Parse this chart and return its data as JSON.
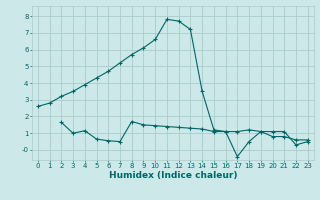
{
  "title": "",
  "xlabel": "Humidex (Indice chaleur)",
  "bg_color": "#cce8e8",
  "grid_color": "#aacccc",
  "line_color": "#006666",
  "xlim": [
    -0.5,
    23.5
  ],
  "ylim": [
    -0.6,
    8.6
  ],
  "xticks": [
    0,
    1,
    2,
    3,
    4,
    5,
    6,
    7,
    8,
    9,
    10,
    11,
    12,
    13,
    14,
    15,
    16,
    17,
    18,
    19,
    20,
    21,
    22,
    23
  ],
  "yticks": [
    0,
    1,
    2,
    3,
    4,
    5,
    6,
    7,
    8
  ],
  "ytick_labels": [
    "-0",
    "1",
    "2",
    "3",
    "4",
    "5",
    "6",
    "7",
    "8"
  ],
  "line1_x": [
    0,
    1,
    2,
    3,
    4,
    5,
    6,
    7,
    8,
    9,
    10,
    11,
    12,
    13,
    14,
    15,
    16,
    17,
    18,
    19,
    20,
    21,
    22,
    23
  ],
  "line1_y": [
    2.6,
    2.8,
    3.2,
    3.5,
    3.9,
    4.3,
    4.7,
    5.2,
    5.7,
    6.1,
    6.6,
    7.8,
    7.7,
    7.2,
    3.5,
    1.2,
    1.1,
    1.1,
    1.2,
    1.1,
    0.8,
    0.8,
    0.6,
    0.6
  ],
  "line2_x": [
    2,
    3,
    4,
    5,
    6,
    7,
    8,
    9,
    10,
    11,
    12,
    13,
    14,
    15,
    16,
    17,
    18,
    19,
    20,
    21,
    22,
    23
  ],
  "line2_y": [
    1.65,
    1.0,
    1.15,
    0.65,
    0.55,
    0.5,
    1.7,
    1.5,
    1.45,
    1.4,
    1.35,
    1.3,
    1.25,
    1.1,
    1.1,
    -0.4,
    0.5,
    1.1,
    1.1,
    1.1,
    0.3,
    0.5
  ],
  "tick_fontsize": 5.0,
  "xlabel_fontsize": 6.5,
  "linewidth": 0.8,
  "markersize": 3.0
}
